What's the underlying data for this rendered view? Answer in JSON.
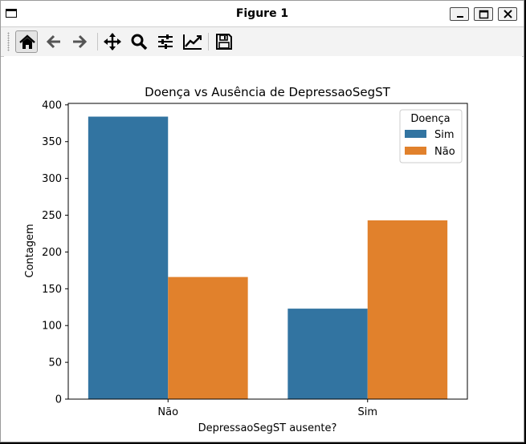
{
  "window": {
    "title": "Figure 1"
  },
  "toolbar": {
    "buttons": [
      {
        "name": "home-button",
        "icon": "home-icon"
      },
      {
        "name": "back-button",
        "icon": "arrow-left-icon"
      },
      {
        "name": "forward-button",
        "icon": "arrow-right-icon"
      },
      {
        "name": "pan-button",
        "icon": "move-icon"
      },
      {
        "name": "zoom-button",
        "icon": "magnifier-icon"
      },
      {
        "name": "configure-subplots-button",
        "icon": "sliders-icon"
      },
      {
        "name": "edit-axes-button",
        "icon": "line-chart-icon"
      },
      {
        "name": "save-button",
        "icon": "floppy-disk-icon"
      }
    ]
  },
  "chart_data": {
    "type": "bar",
    "title": "Doença vs Ausência de DepressaoSegST",
    "xlabel": "DepressaoSegST ausente?",
    "ylabel": "Contagem",
    "categories": [
      "Não",
      "Sim"
    ],
    "series": [
      {
        "name": "Sim",
        "values": [
          384,
          123
        ],
        "color": "#3274a1"
      },
      {
        "name": "Não",
        "values": [
          166,
          243
        ],
        "color": "#e1812c"
      }
    ],
    "ylim": [
      0,
      402
    ],
    "yticks": [
      0,
      50,
      100,
      150,
      200,
      250,
      300,
      350,
      400
    ],
    "legend": {
      "title": "Doença",
      "placement": "top-right"
    },
    "grid": false
  }
}
